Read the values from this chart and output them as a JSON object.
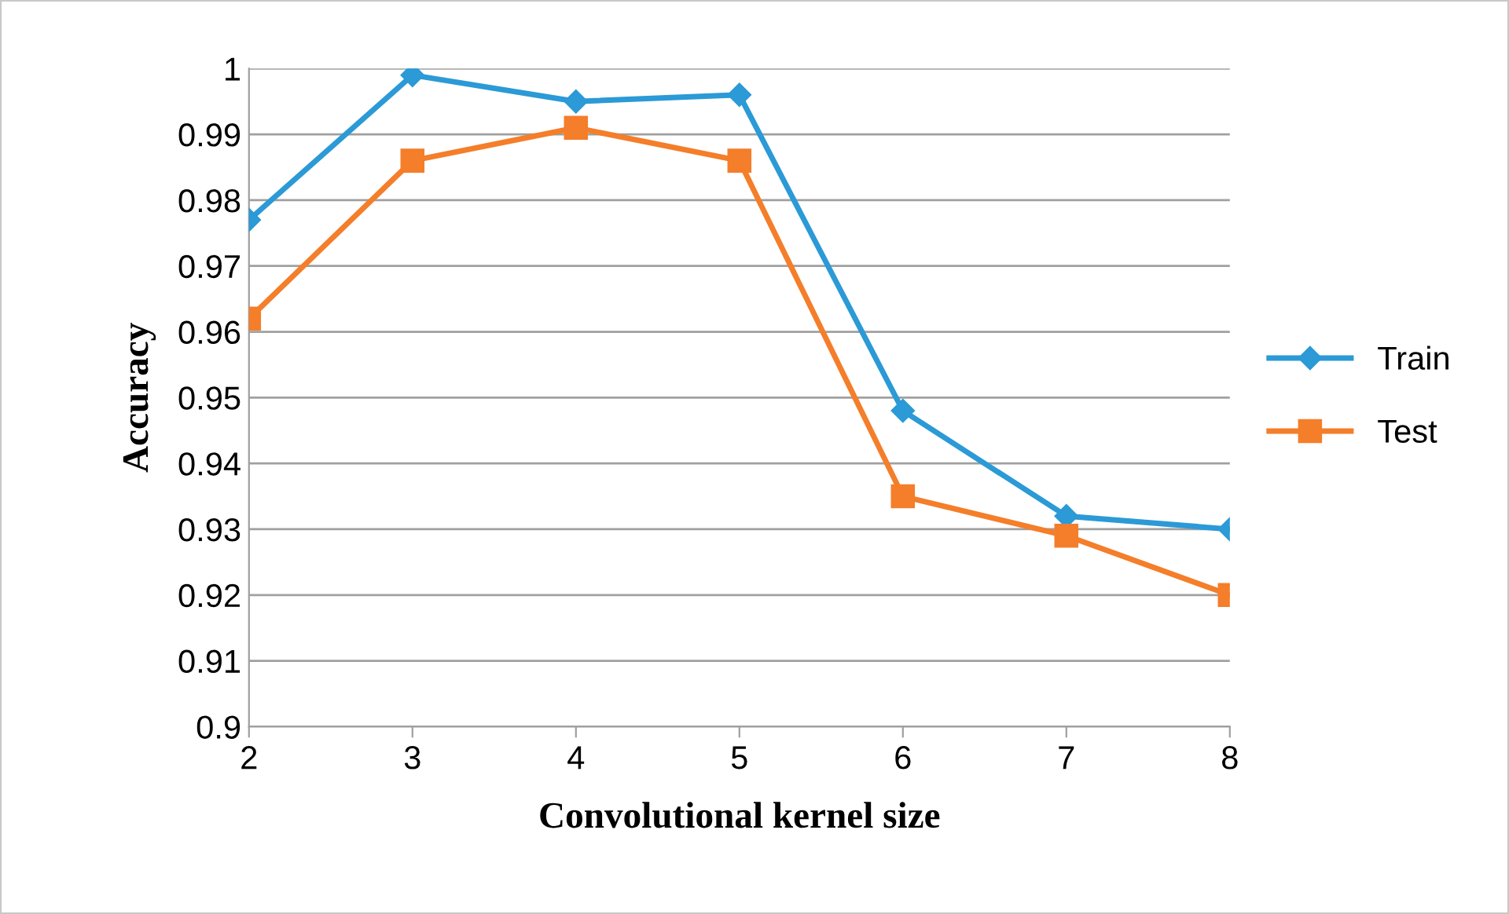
{
  "chart_data": {
    "type": "line",
    "xlabel": "Convolutional kernel size",
    "ylabel": "Accuracy",
    "categories": [
      "2",
      "3",
      "4",
      "5",
      "6",
      "7",
      "8"
    ],
    "series": [
      {
        "name": "Train",
        "color": "#2b9ad6",
        "marker": "diamond",
        "values": [
          0.977,
          0.999,
          0.995,
          0.996,
          0.948,
          0.932,
          0.93
        ]
      },
      {
        "name": "Test",
        "color": "#f47e2a",
        "marker": "square",
        "values": [
          0.962,
          0.986,
          0.991,
          0.986,
          0.935,
          0.929,
          0.92
        ]
      }
    ],
    "ylim": [
      0.9,
      1.0
    ],
    "yticks": [
      {
        "value": 0.9,
        "label": "0.9"
      },
      0.91,
      0.92,
      0.93,
      0.94,
      0.95,
      0.96,
      0.97,
      0.98,
      0.99,
      {
        "value": 1.0,
        "label": "1"
      }
    ],
    "grid": "y",
    "legend": "right",
    "line_style": "solid"
  }
}
